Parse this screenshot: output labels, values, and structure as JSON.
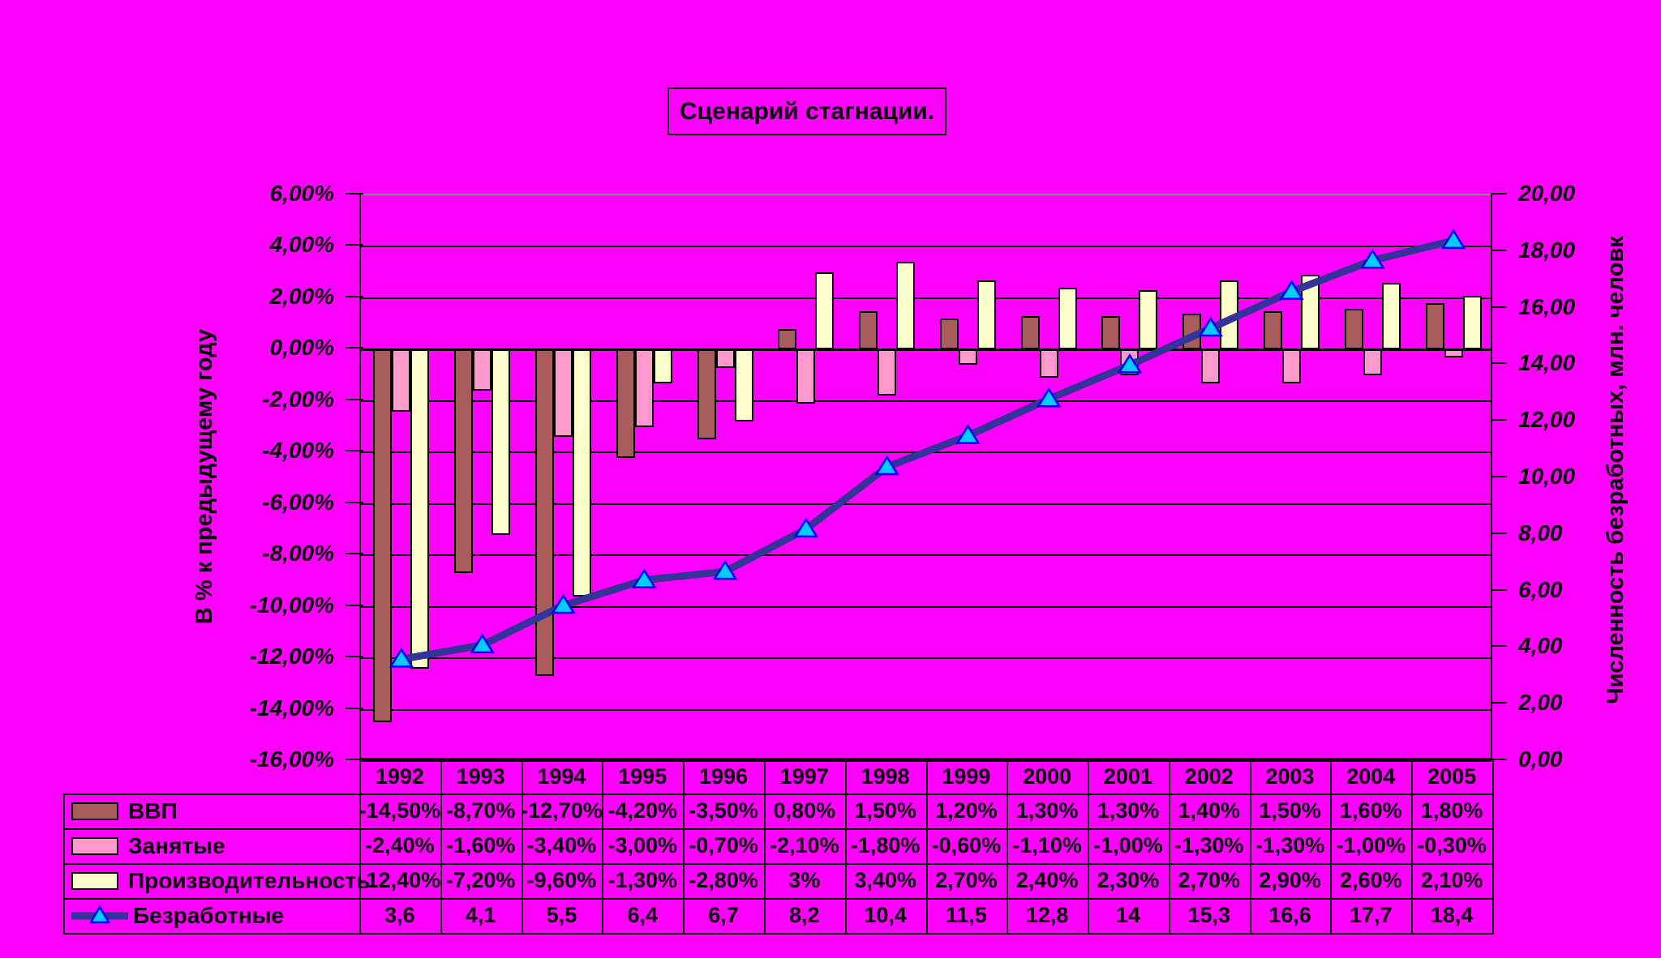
{
  "chart_data": {
    "type": "bar",
    "title": "Сценарий стагнации.",
    "categories": [
      "1992",
      "1993",
      "1994",
      "1995",
      "1996",
      "1997",
      "1998",
      "1999",
      "2000",
      "2001",
      "2002",
      "2003",
      "2004",
      "2005"
    ],
    "series": [
      {
        "key": "gdp",
        "name": "ВВП",
        "type": "bar",
        "axis": "left",
        "color": "#A85C5C",
        "values": [
          -14.5,
          -8.7,
          -12.7,
          -4.2,
          -3.5,
          0.8,
          1.5,
          1.2,
          1.3,
          1.3,
          1.4,
          1.5,
          1.6,
          1.8
        ],
        "labels": [
          "-14,50%",
          "-8,70%",
          "-12,70%",
          "-4,20%",
          "-3,50%",
          "0,80%",
          "1,50%",
          "1,20%",
          "1,30%",
          "1,30%",
          "1,40%",
          "1,50%",
          "1,60%",
          "1,80%"
        ]
      },
      {
        "key": "employed",
        "name": "Занятые",
        "type": "bar",
        "axis": "left",
        "color": "#FF99CC",
        "values": [
          -2.4,
          -1.6,
          -3.4,
          -3.0,
          -0.7,
          -2.1,
          -1.8,
          -0.6,
          -1.1,
          -1.0,
          -1.3,
          -1.3,
          -1.0,
          -0.3
        ],
        "labels": [
          "-2,40%",
          "-1,60%",
          "-3,40%",
          "-3,00%",
          "-0,70%",
          "-2,10%",
          "-1,80%",
          "-0,60%",
          "-1,10%",
          "-1,00%",
          "-1,30%",
          "-1,30%",
          "-1,00%",
          "-0,30%"
        ]
      },
      {
        "key": "productivity",
        "name": "Производительность",
        "type": "bar",
        "axis": "left",
        "color": "#FFFFCC",
        "values": [
          -12.4,
          -7.2,
          -9.6,
          -1.3,
          -2.8,
          3.0,
          3.4,
          2.7,
          2.4,
          2.3,
          2.7,
          2.9,
          2.6,
          2.1
        ],
        "labels": [
          "-12,40%",
          "-7,20%",
          "-9,60%",
          "-1,30%",
          "-2,80%",
          "3%",
          "3,40%",
          "2,70%",
          "2,40%",
          "2,30%",
          "2,70%",
          "2,90%",
          "2,60%",
          "2,10%"
        ]
      },
      {
        "key": "unemployed",
        "name": "Безработные",
        "type": "line",
        "axis": "right",
        "color": "#333399",
        "marker": "triangle",
        "marker_fill": "#00CCFF",
        "marker_border": "#0000FF",
        "values": [
          3.6,
          4.1,
          5.5,
          6.4,
          6.7,
          8.2,
          10.4,
          11.5,
          12.8,
          14,
          15.3,
          16.6,
          17.7,
          18.4
        ],
        "labels": [
          "3,6",
          "4,1",
          "5,5",
          "6,4",
          "6,7",
          "8,2",
          "10,4",
          "11,5",
          "12,8",
          "14",
          "15,3",
          "16,6",
          "17,7",
          "18,4"
        ]
      }
    ],
    "left_axis": {
      "label": "В % к предыдущему году",
      "min": -16,
      "max": 6,
      "step": 2,
      "tick_labels": [
        "6,00%",
        "4,00%",
        "2,00%",
        "0,00%",
        "-2,00%",
        "-4,00%",
        "-6,00%",
        "-8,00%",
        "-10,00%",
        "-12,00%",
        "-14,00%",
        "-16,00%"
      ]
    },
    "right_axis": {
      "label": "Численность безработных, млн. человк",
      "min": 0,
      "max": 20,
      "step": 2,
      "tick_labels": [
        "20,00",
        "18,00",
        "16,00",
        "14,00",
        "12,00",
        "10,00",
        "8,00",
        "6,00",
        "4,00",
        "2,00",
        "0,00"
      ]
    },
    "grid": "horizontal-only",
    "legend_position": "data-table-left-column",
    "background": "#FF00FF"
  }
}
